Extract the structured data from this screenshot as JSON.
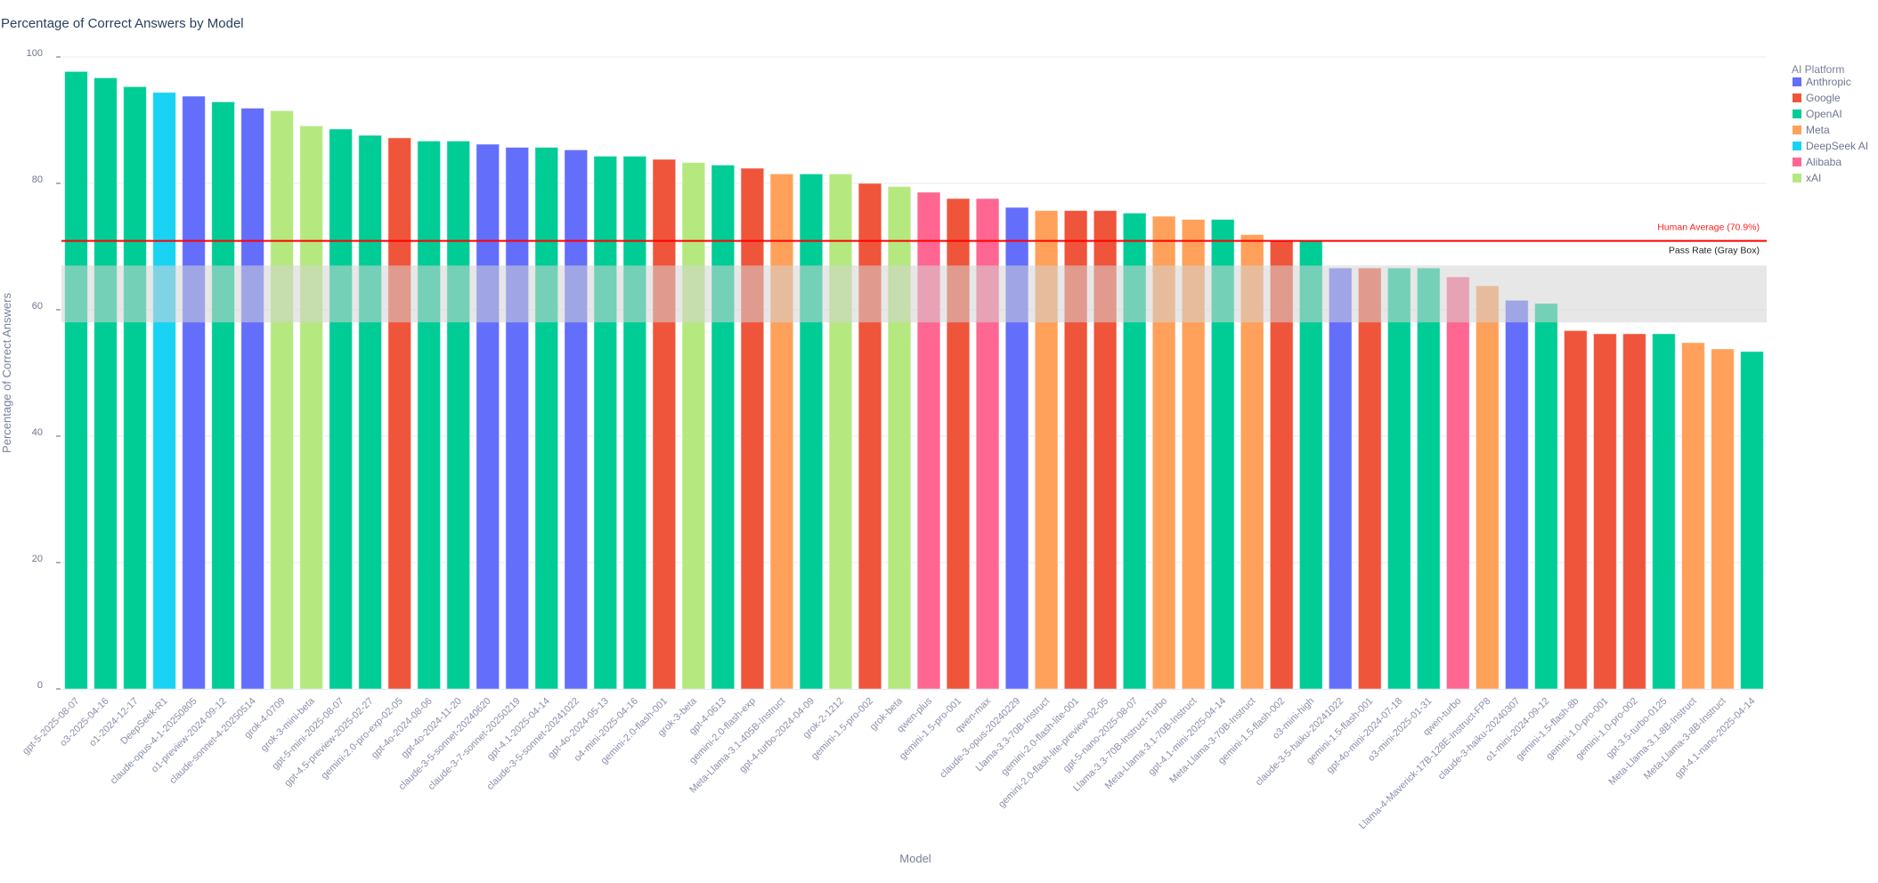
{
  "chart_data": {
    "type": "bar",
    "title": "Percentage of Correct Answers by Model",
    "xlabel": "Model",
    "ylabel": "Percentage of Correct Answers",
    "ylim": [
      0,
      100
    ],
    "yticks": [
      0,
      20,
      40,
      60,
      80,
      100
    ],
    "grid": true,
    "legend": {
      "title": "AI Platform",
      "placement": "top-right",
      "entries": [
        {
          "name": "Anthropic",
          "color": "#636efa"
        },
        {
          "name": "Google",
          "color": "#ef553b"
        },
        {
          "name": "OpenAI",
          "color": "#00cc96"
        },
        {
          "name": "Meta",
          "color": "#ffa15a"
        },
        {
          "name": "DeepSeek AI",
          "color": "#19d3f3"
        },
        {
          "name": "Alibaba",
          "color": "#ff6692"
        },
        {
          "name": "xAI",
          "color": "#b6e880"
        }
      ]
    },
    "reference_line": {
      "label": "Human Average (70.9%)",
      "value": 70.9,
      "color": "#ff0000"
    },
    "reference_band": {
      "label": "Pass Rate (Gray Box)",
      "from": 58,
      "to": 67,
      "color": "#d3d3d3"
    },
    "categories": [
      "gpt-5-2025-08-07",
      "o3-2025-04-16",
      "o1-2024-12-17",
      "DeepSeek-R1",
      "claude-opus-4-1-20250805",
      "o1-preview-2024-09-12",
      "claude-sonnet-4-20250514",
      "grok-4-0709",
      "grok-3-mini-beta",
      "gpt-5-mini-2025-08-07",
      "gpt-4.5-preview-2025-02-27",
      "gemini-2.0-pro-exp-02-05",
      "gpt-4o-2024-08-06",
      "gpt-4o-2024-11-20",
      "claude-3-5-sonnet-20240620",
      "claude-3-7-sonnet-20250219",
      "gpt-4.1-2025-04-14",
      "claude-3-5-sonnet-20241022",
      "gpt-4o-2024-05-13",
      "o4-mini-2025-04-16",
      "gemini-2.0-flash-001",
      "grok-3-beta",
      "gpt-4-0613",
      "gemini-2.0-flash-exp",
      "Meta-Llama-3.1-405B-Instruct",
      "gpt-4-turbo-2024-04-09",
      "grok-2-1212",
      "gemini-1.5-pro-002",
      "grok-beta",
      "qwen-plus",
      "gemini-1.5-pro-001",
      "qwen-max",
      "claude-3-opus-20240229",
      "Llama-3.3-70B-Instruct",
      "gemini-2.0-flash-lite-001",
      "gemini-2.0-flash-lite-preview-02-05",
      "gpt-5-nano-2025-08-07",
      "Llama-3.3-70B-Instruct-Turbo",
      "Meta-Llama-3.1-70B-Instruct",
      "gpt-4.1-mini-2025-04-14",
      "Meta-Llama-3-70B-Instruct",
      "gemini-1.5-flash-002",
      "o3-mini-high",
      "claude-3-5-haiku-20241022",
      "gemini-1.5-flash-001",
      "gpt-4o-mini-2024-07-18",
      "o3-mini-2025-01-31",
      "qwen-turbo",
      "Llama-4-Maverick-17B-128E-Instruct-FP8",
      "claude-3-haiku-20240307",
      "o1-mini-2024-09-12",
      "gemini-1.5-flash-8b",
      "gemini-1.0-pro-001",
      "gemini-1.0-pro-002",
      "gpt-3.5-turbo-0125",
      "Meta-Llama-3.1-8B-Instruct",
      "Meta-Llama-3-8B-Instruct",
      "gpt-4.1-nano-2025-04-14"
    ],
    "platforms": [
      "OpenAI",
      "OpenAI",
      "OpenAI",
      "DeepSeek AI",
      "Anthropic",
      "OpenAI",
      "Anthropic",
      "xAI",
      "xAI",
      "OpenAI",
      "OpenAI",
      "Google",
      "OpenAI",
      "OpenAI",
      "Anthropic",
      "Anthropic",
      "OpenAI",
      "Anthropic",
      "OpenAI",
      "OpenAI",
      "Google",
      "xAI",
      "OpenAI",
      "Google",
      "Meta",
      "OpenAI",
      "xAI",
      "Google",
      "xAI",
      "Alibaba",
      "Google",
      "Alibaba",
      "Anthropic",
      "Meta",
      "Google",
      "Google",
      "OpenAI",
      "Meta",
      "Meta",
      "OpenAI",
      "Meta",
      "Google",
      "OpenAI",
      "Anthropic",
      "Google",
      "OpenAI",
      "OpenAI",
      "Alibaba",
      "Meta",
      "Anthropic",
      "OpenAI",
      "Google",
      "Google",
      "Google",
      "OpenAI",
      "Meta",
      "Meta",
      "OpenAI"
    ],
    "values": [
      97.7,
      96.7,
      95.3,
      94.4,
      93.8,
      92.9,
      91.9,
      91.5,
      89.1,
      88.6,
      87.6,
      87.2,
      86.7,
      86.7,
      86.2,
      85.7,
      85.7,
      85.3,
      84.3,
      84.3,
      83.8,
      83.3,
      82.9,
      82.4,
      81.5,
      81.5,
      81.5,
      80.0,
      79.5,
      78.6,
      77.6,
      77.6,
      76.2,
      75.7,
      75.7,
      75.7,
      75.3,
      74.8,
      74.3,
      74.3,
      71.9,
      71.0,
      71.0,
      66.6,
      66.6,
      66.6,
      66.6,
      65.2,
      63.8,
      61.5,
      61.0,
      56.7,
      56.2,
      56.2,
      56.2,
      54.8,
      53.8,
      53.4
    ]
  }
}
